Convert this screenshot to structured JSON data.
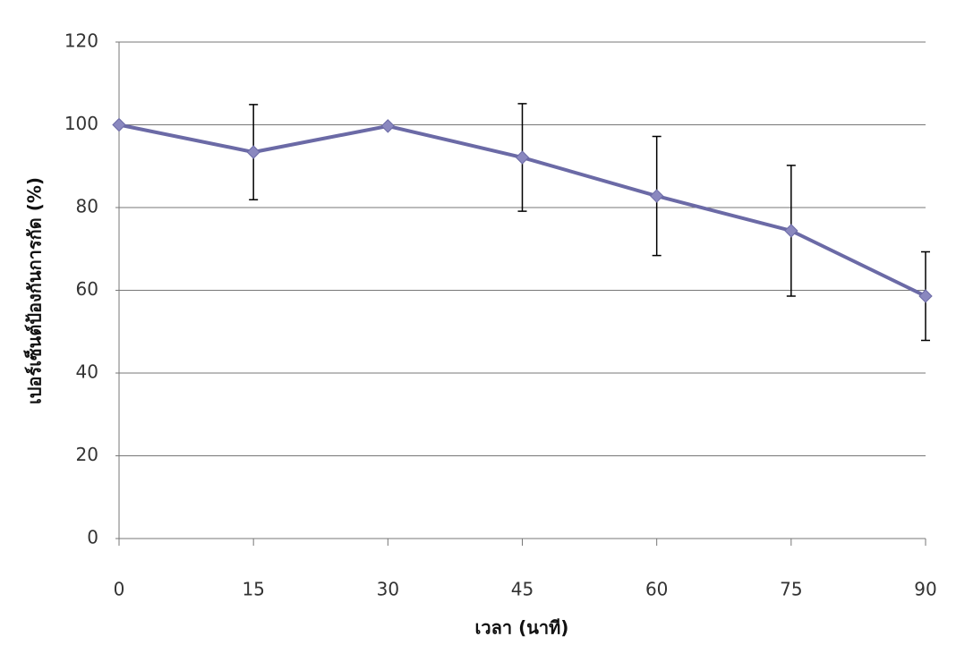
{
  "chart_data": {
    "type": "line",
    "x_label": "เวลา (นาที)",
    "y_label": "เปอร์เซ็นต์ป้องกันการกัด  (%)",
    "x": [
      0,
      15,
      30,
      45,
      60,
      75,
      90
    ],
    "series": [
      {
        "color": "#6b6aa6",
        "values": [
          100,
          93.4,
          99.7,
          92.1,
          82.8,
          74.4,
          58.6
        ],
        "errors": [
          0,
          11.5,
          0,
          13,
          14.4,
          15.8,
          10.7
        ]
      }
    ],
    "xlim": [
      0,
      90
    ],
    "xticks": [
      0,
      15,
      30,
      45,
      60,
      75,
      90
    ],
    "ylim": [
      0,
      120
    ],
    "yticks": [
      0,
      20,
      40,
      60,
      80,
      100,
      120
    ],
    "grid": true
  }
}
